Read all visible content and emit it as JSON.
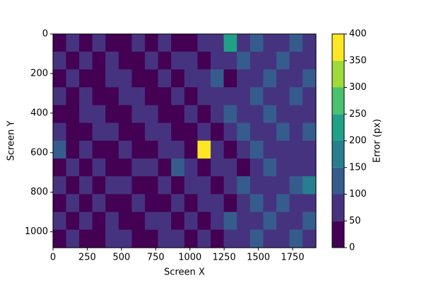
{
  "chart_data": {
    "type": "contour",
    "xlabel": "Screen X",
    "ylabel": "Screen Y",
    "colorbar_label": "Error (px)",
    "xlim": [
      0,
      1920
    ],
    "ylim": [
      1080,
      0
    ],
    "xticks": [
      0,
      250,
      500,
      750,
      1000,
      1250,
      1500,
      1750
    ],
    "yticks": [
      0,
      200,
      400,
      600,
      800,
      1000
    ],
    "levels": [
      0,
      50,
      100,
      150,
      200,
      250,
      300,
      350,
      400
    ],
    "colors": [
      "#440154",
      "#46337f",
      "#365c8d",
      "#277f8e",
      "#1fa187",
      "#4ac16d",
      "#a0da39",
      "#fde725"
    ],
    "z": [
      [
        40,
        75,
        40,
        75,
        40,
        40,
        75,
        40,
        75,
        40,
        40,
        75,
        75,
        210,
        75,
        120,
        75,
        75,
        120,
        75
      ],
      [
        75,
        40,
        75,
        40,
        75,
        40,
        40,
        75,
        40,
        75,
        75,
        40,
        75,
        75,
        120,
        75,
        75,
        120,
        75,
        75
      ],
      [
        40,
        75,
        40,
        40,
        75,
        75,
        40,
        40,
        75,
        40,
        75,
        75,
        120,
        40,
        75,
        75,
        120,
        75,
        75,
        120
      ],
      [
        75,
        40,
        75,
        40,
        40,
        75,
        75,
        40,
        40,
        75,
        40,
        75,
        75,
        75,
        75,
        120,
        75,
        75,
        120,
        75
      ],
      [
        40,
        40,
        75,
        75,
        40,
        40,
        75,
        75,
        40,
        40,
        75,
        40,
        75,
        120,
        75,
        75,
        120,
        75,
        75,
        75
      ],
      [
        75,
        40,
        40,
        75,
        75,
        40,
        40,
        75,
        75,
        40,
        40,
        75,
        40,
        75,
        120,
        75,
        75,
        120,
        75,
        120
      ],
      [
        120,
        40,
        75,
        40,
        40,
        75,
        40,
        40,
        75,
        75,
        40,
        380,
        75,
        40,
        75,
        120,
        75,
        75,
        75,
        75
      ],
      [
        40,
        75,
        40,
        75,
        40,
        40,
        75,
        75,
        40,
        120,
        75,
        40,
        75,
        75,
        40,
        75,
        120,
        75,
        75,
        75
      ],
      [
        75,
        40,
        75,
        40,
        75,
        75,
        40,
        40,
        75,
        40,
        75,
        75,
        40,
        75,
        120,
        75,
        75,
        75,
        120,
        170
      ],
      [
        40,
        75,
        40,
        75,
        40,
        40,
        75,
        40,
        40,
        75,
        40,
        75,
        75,
        40,
        75,
        120,
        75,
        120,
        75,
        75
      ],
      [
        75,
        40,
        75,
        40,
        75,
        40,
        40,
        75,
        75,
        40,
        75,
        40,
        75,
        120,
        75,
        75,
        120,
        75,
        75,
        120
      ],
      [
        40,
        75,
        40,
        40,
        75,
        75,
        40,
        40,
        75,
        75,
        40,
        75,
        40,
        75,
        75,
        120,
        75,
        75,
        120,
        75
      ]
    ]
  }
}
